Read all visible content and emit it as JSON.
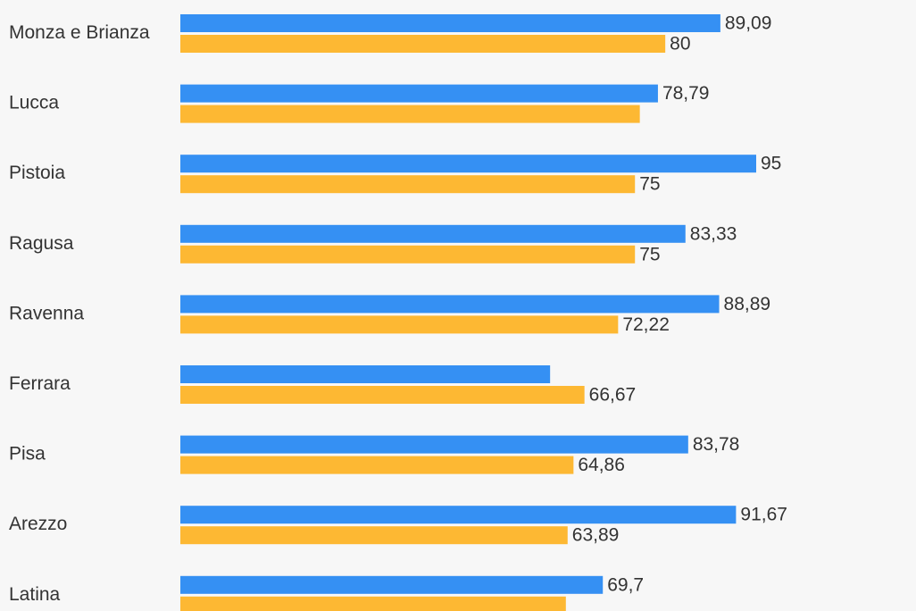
{
  "chart_data": {
    "type": "bar",
    "orientation": "horizontal",
    "categories": [
      "Monza e Brianza",
      "Lucca",
      "Pistoia",
      "Ragusa",
      "Ravenna",
      "Ferrara",
      "Pisa",
      "Arezzo",
      "Latina"
    ],
    "series": [
      {
        "color": "#3590f3",
        "values": [
          89.09,
          78.79,
          95,
          83.33,
          88.89,
          61,
          83.78,
          91.67,
          69.7
        ],
        "labels": [
          "89,09",
          "78,79",
          "95",
          "83,33",
          "88,89",
          "",
          "83,78",
          "91,67",
          "69,7"
        ]
      },
      {
        "color": "#fdb833",
        "values": [
          80,
          75.8,
          75,
          75,
          72.22,
          66.67,
          64.86,
          63.89,
          63.6
        ],
        "labels": [
          "80",
          "",
          "75",
          "75",
          "72,22",
          "66,67",
          "64,86",
          "63,89",
          ""
        ]
      }
    ],
    "xlim": [
      0,
      100
    ],
    "grid": false,
    "legend": "none"
  }
}
